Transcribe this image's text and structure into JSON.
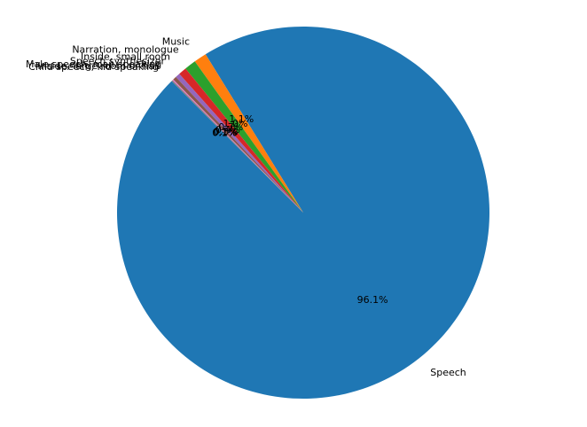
{
  "chart_data": {
    "type": "pie",
    "title": "",
    "categories": [
      "Speech",
      "Music",
      "Narration, monologue",
      "Inside, small room",
      "Speech synthesizer",
      "Male speech, man speaking",
      "Inside, large room or hall",
      "Child speech, kid speaking"
    ],
    "values": [
      96.1,
      1.1,
      1.0,
      0.7,
      0.4,
      0.3,
      0.1,
      0.1
    ],
    "pct_labels": [
      "96.1%",
      "1.1%",
      "1.0%",
      "0.7%",
      "0.4%",
      "0.3%",
      "0.1%",
      "0.1%"
    ],
    "colors": [
      "#1f77b4",
      "#ff7f0e",
      "#2ca02c",
      "#d62728",
      "#9467bd",
      "#8c564b",
      "#e377c2",
      "#7f7f7f"
    ],
    "start_angle_deg": 135,
    "direction": "counterclockwise",
    "legend": "none"
  }
}
